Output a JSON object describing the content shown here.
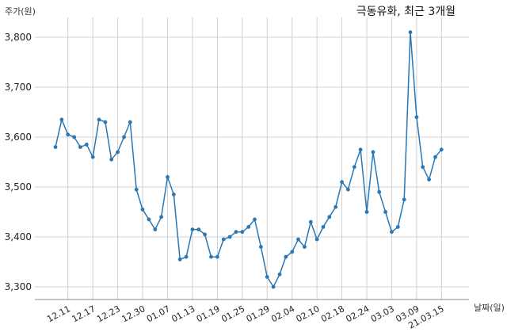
{
  "chart_data": {
    "type": "line",
    "title": "극동유화, 최근 3개월",
    "ylabel": "주가(원)",
    "xlabel": "날짜(일)",
    "ylim": [
      3280,
      3830
    ],
    "yticks": [
      3300,
      3400,
      3500,
      3600,
      3700,
      3800
    ],
    "ytick_labels": [
      "3,300",
      "3,400",
      "3,500",
      "3,600",
      "3,700",
      "3,800"
    ],
    "xtick_labels": [
      "12.11",
      "12.17",
      "12.23",
      "12.30",
      "01.07",
      "01.13",
      "01.19",
      "01.25",
      "01.29",
      "02.04",
      "02.10",
      "02.18",
      "02.24",
      "03.03",
      "03.09",
      "21.03.15"
    ],
    "xtick_index": [
      2,
      6,
      10,
      14,
      18,
      22,
      26,
      30,
      34,
      38,
      42,
      46,
      50,
      54,
      58,
      62
    ],
    "grid": true,
    "color": "#2a77b4",
    "series": [
      {
        "values": [
          3580,
          3635,
          3605,
          3600,
          3580,
          3585,
          3560,
          3635,
          3630,
          3555,
          3570,
          3600,
          3630,
          3495,
          3455,
          3435,
          3415,
          3440,
          3520,
          3485,
          3355,
          3360,
          3415,
          3415,
          3405,
          3360,
          3360,
          3395,
          3400,
          3410,
          3410,
          3420,
          3435,
          3380,
          3320,
          3300,
          3325,
          3360,
          3370,
          3395,
          3380,
          3430,
          3395,
          3420,
          3440,
          3460,
          3510,
          3495,
          3540,
          3575,
          3450,
          3570,
          3490,
          3450,
          3410,
          3420,
          3475,
          3810,
          3640,
          3540,
          3515,
          3560,
          3575
        ]
      }
    ]
  }
}
